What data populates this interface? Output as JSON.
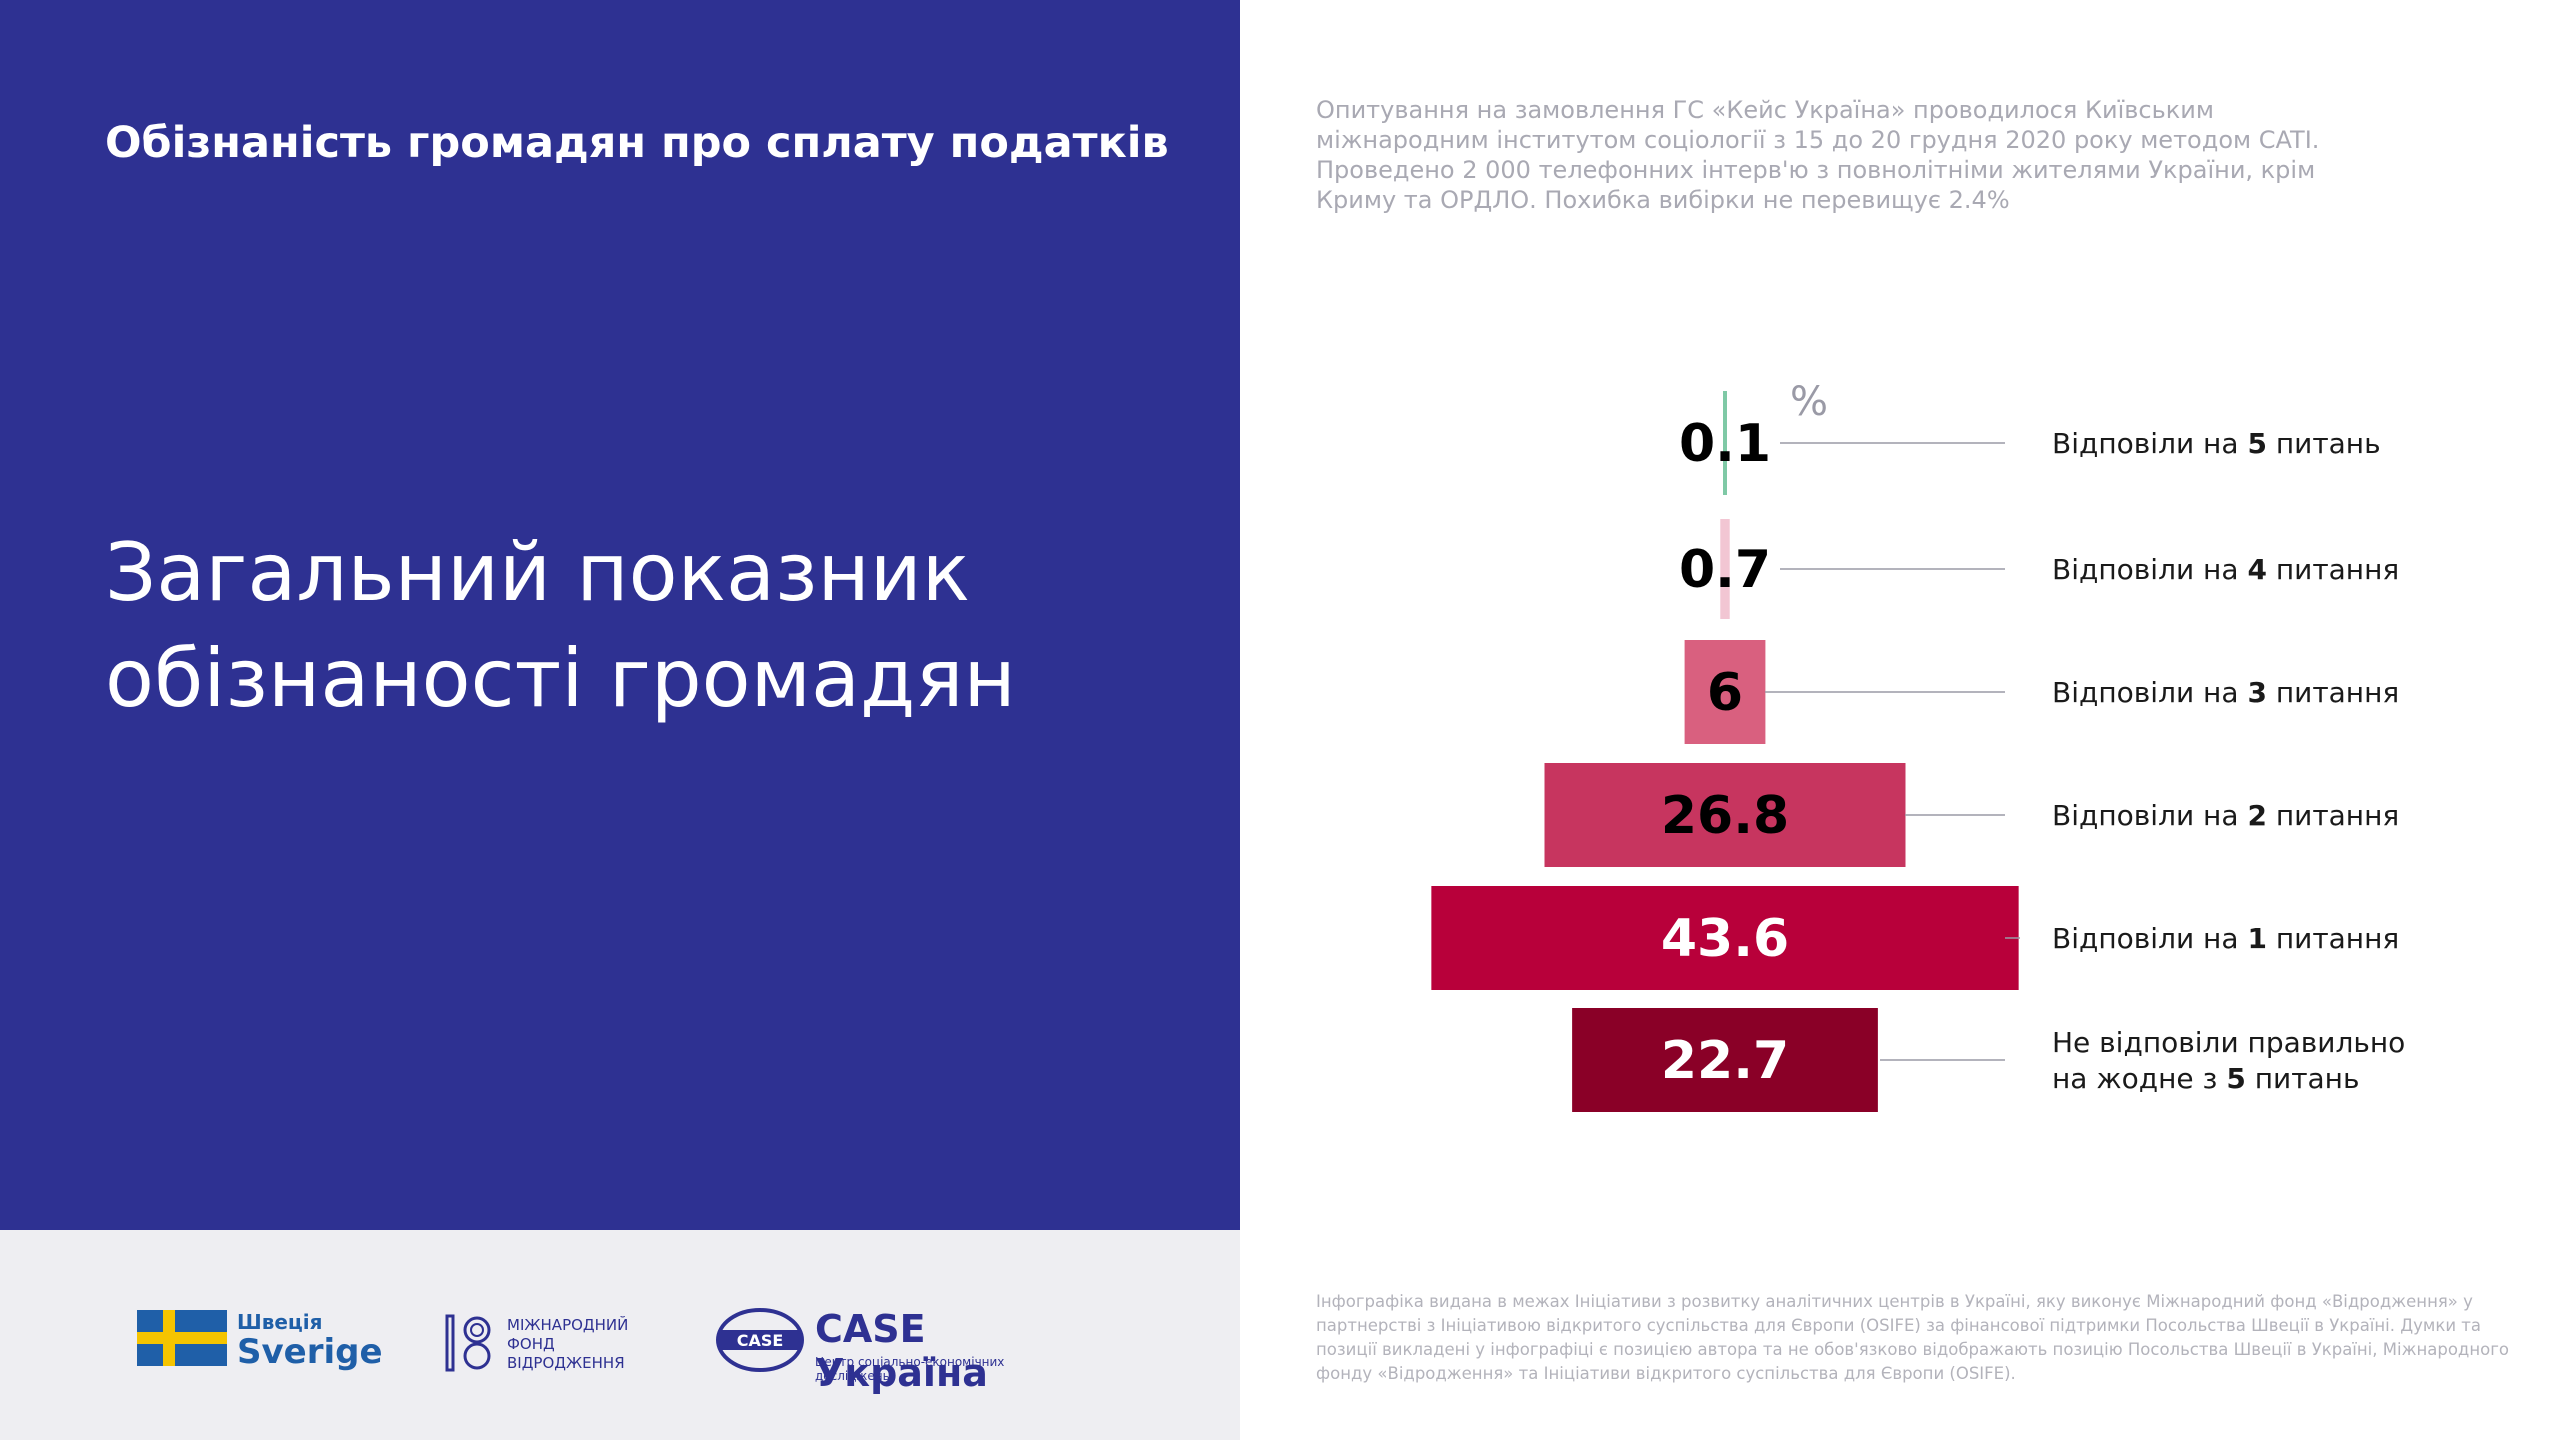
{
  "header": {
    "title": "Обізнаність громадян про сплату податків",
    "main_title": "Загальний показник обізнаності громадян"
  },
  "survey_note": "Опитування на замовлення ГС «Кейс Україна» проводилося Київським міжнародним інститутом соціології з 15 до 20 грудня 2020 року методом CATI. Проведено 2 000 телефонних інтерв'ю з повнолітніми жителями України, крім Криму та ОРДЛО. Похибка вибірки не перевищує 2.4%",
  "footer_note": "Інфографіка видана в межах Ініціативи з розвитку аналітичних центрів в Україні, яку виконує Міжнародний фонд «Відродження» у партнерстві з Ініціативою відкритого суспільства для Європи (OSIFE) за фінансової підтримки Посольства Швеції в Україні. Думки та позиції викладені у інфографіці є позицією автора та не обов'язково відображають позицію Посольства Швеції в Україні, Міжнародного фонду «Відродження» та Ініціативи відкритого суспільства для Європи (OSIFE).",
  "logos": {
    "sweden_line1": "Швеція",
    "sweden_line2": "Sverige",
    "irf": "МІЖНАРОДНИЙ\nФОНД\nВІДРОДЖЕННЯ",
    "case_name": "CASE Україна",
    "case_sub": "Центр соціально-економічних досліджень",
    "case_emblem": "CASE"
  },
  "chart_data": {
    "type": "bar",
    "orientation": "horizontal-centered",
    "unit": "%",
    "categories": [
      [
        "Відповіли на ",
        "5",
        " питань"
      ],
      [
        "Відповіли на ",
        "4",
        " питання"
      ],
      [
        "Відповіли на ",
        "3",
        " питання"
      ],
      [
        "Відповіли на ",
        "2",
        " питання"
      ],
      [
        "Відповіли на ",
        "1",
        " питання"
      ],
      [
        "Не відповіли правильно",
        "на жодне з ",
        "5",
        " питань"
      ]
    ],
    "values": [
      0.1,
      0.7,
      6,
      26.8,
      43.6,
      22.7
    ],
    "value_labels": [
      "0.1",
      "0.7",
      "6",
      "26.8",
      "43.6",
      "22.7"
    ],
    "colors": [
      "#7fc9a6",
      "#f2c6d3",
      "#d9607f",
      "#c7355f",
      "#b8003a",
      "#8a0027"
    ],
    "label_colors": [
      "#000000",
      "#000000",
      "#000000",
      "#000000",
      "#ffffff",
      "#ffffff"
    ]
  }
}
